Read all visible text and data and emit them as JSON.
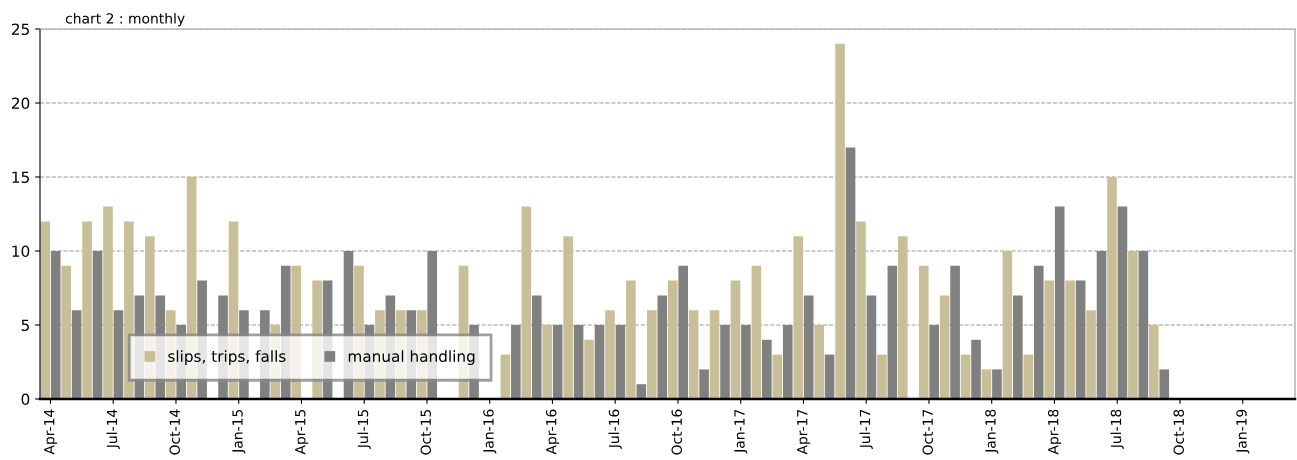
{
  "chart_data": {
    "type": "bar",
    "title": "chart 2 : monthly",
    "categories": [
      "Apr-14",
      null,
      null,
      "Jul-14",
      null,
      null,
      "Oct-14",
      null,
      null,
      "Jan-15",
      null,
      null,
      "Apr-15",
      null,
      null,
      "Jul-15",
      null,
      null,
      "Oct-15",
      null,
      null,
      "Jan-16",
      null,
      null,
      "Apr-16",
      null,
      null,
      "Jul-16",
      null,
      null,
      "Oct-16",
      null,
      null,
      "Jan-17",
      null,
      null,
      "Apr-17",
      null,
      null,
      "Jul-17",
      null,
      null,
      "Oct-17",
      null,
      null,
      "Jan-18",
      null,
      null,
      "Apr-18",
      null,
      null,
      "Jul-18",
      null,
      null,
      "Oct-18",
      null,
      null,
      "Jan-19",
      null,
      null
    ],
    "series": [
      {
        "name": "slips, trips, falls",
        "color": "#c8bf98",
        "values": [
          12,
          9,
          12,
          13,
          12,
          11,
          6,
          15,
          null,
          12,
          null,
          5,
          9,
          8,
          null,
          9,
          6,
          6,
          6,
          null,
          9,
          null,
          3,
          13,
          5,
          11,
          4,
          6,
          8,
          6,
          8,
          6,
          6,
          8,
          9,
          3,
          11,
          5,
          24,
          12,
          3,
          11,
          9,
          7,
          3,
          2,
          10,
          3,
          8,
          8,
          6,
          15,
          10,
          5,
          null,
          null,
          null,
          null,
          null,
          null
        ]
      },
      {
        "name": "manual handling",
        "color": "#808080",
        "values": [
          10,
          6,
          10,
          6,
          7,
          7,
          5,
          8,
          7,
          6,
          6,
          9,
          null,
          8,
          10,
          5,
          7,
          6,
          10,
          null,
          5,
          null,
          5,
          7,
          5,
          5,
          5,
          5,
          1,
          7,
          9,
          2,
          5,
          5,
          4,
          5,
          7,
          3,
          17,
          7,
          9,
          0,
          5,
          9,
          4,
          2,
          7,
          9,
          13,
          8,
          10,
          13,
          10,
          2,
          null,
          null,
          null,
          null,
          null,
          null
        ]
      }
    ],
    "ylim": [
      0,
      25
    ],
    "yticks": [
      0,
      5,
      10,
      15,
      20,
      25
    ],
    "grid": "y",
    "legend": "bottom left"
  }
}
